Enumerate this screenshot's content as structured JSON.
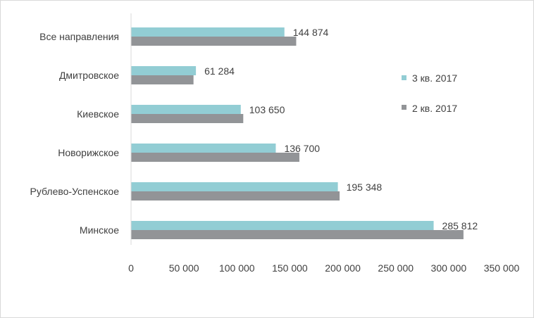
{
  "chart_data": {
    "type": "bar",
    "orientation": "horizontal",
    "categories": [
      "Все направления",
      "Дмитровское",
      "Киевское",
      "Новорижское",
      "Рублево-Успенское",
      "Минское"
    ],
    "series": [
      {
        "name": "3 кв. 2017",
        "color": "#92cdd4",
        "values": [
          144874,
          61284,
          103650,
          136700,
          195348,
          285812
        ],
        "labels": [
          "144 874",
          "61 284",
          "103 650",
          "136 700",
          "195 348",
          "285 812"
        ]
      },
      {
        "name": "2 кв. 2017",
        "color": "#929497",
        "values": [
          156000,
          59000,
          106000,
          159000,
          197000,
          314000
        ]
      }
    ],
    "xlim": [
      0,
      350000
    ],
    "xticks": [
      0,
      50000,
      100000,
      150000,
      200000,
      250000,
      300000,
      350000
    ],
    "xtick_labels": [
      "0",
      "50 000",
      "100 000",
      "150 000",
      "200 000",
      "250 000",
      "300 000",
      "350 000"
    ],
    "legend_position": "right",
    "grid": false
  }
}
